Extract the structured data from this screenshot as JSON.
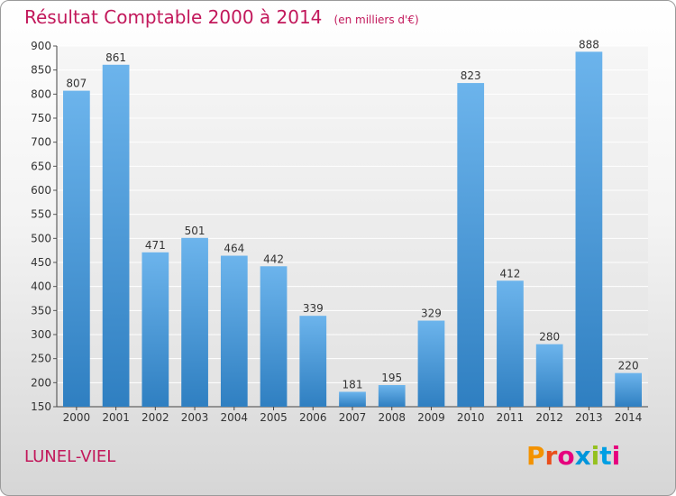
{
  "title": "Résultat Comptable 2000 à 2014",
  "unit_note": "(en milliers d'€)",
  "commune": "LUNEL-VIEL",
  "logo_text": "Proxiti",
  "logo_colors": [
    "#f39200",
    "#e94e1b",
    "#e6007e",
    "#0095db",
    "#95c11f",
    "#009fe3",
    "#e6007e"
  ],
  "colors": {
    "title": "#c2185b",
    "bar_light": "#6cb4ec",
    "bar_dark": "#2f7fc1",
    "plot_bg": "#eeeeee",
    "grid": "#ffffff"
  },
  "chart_data": {
    "type": "bar",
    "title": "Résultat Comptable 2000 à 2014",
    "categories": [
      "2000",
      "2001",
      "2002",
      "2003",
      "2004",
      "2005",
      "2006",
      "2007",
      "2008",
      "2009",
      "2010",
      "2011",
      "2012",
      "2013",
      "2014"
    ],
    "values": [
      807,
      861,
      471,
      501,
      464,
      442,
      339,
      181,
      195,
      329,
      823,
      412,
      280,
      888,
      220
    ],
    "ylim": [
      150,
      900
    ],
    "yticks": [
      150,
      200,
      250,
      300,
      350,
      400,
      450,
      500,
      550,
      600,
      650,
      700,
      750,
      800,
      850,
      900
    ],
    "grid": true,
    "legend": "none"
  }
}
